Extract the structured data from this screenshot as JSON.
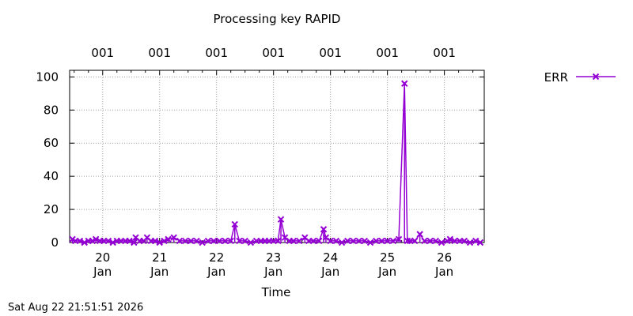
{
  "chart_data": {
    "type": "line",
    "title": "Processing key RAPID",
    "xlabel": "Time",
    "ylabel": "",
    "ylim": [
      0,
      104
    ],
    "xlim": [
      19.42,
      26.7
    ],
    "yticks": [
      0,
      20,
      40,
      60,
      80,
      100
    ],
    "xticks": [
      {
        "value": 20,
        "day": "20",
        "month": "Jan"
      },
      {
        "value": 21,
        "day": "21",
        "month": "Jan"
      },
      {
        "value": 22,
        "day": "22",
        "month": "Jan"
      },
      {
        "value": 23,
        "day": "23",
        "month": "Jan"
      },
      {
        "value": 24,
        "day": "24",
        "month": "Jan"
      },
      {
        "value": 25,
        "day": "25",
        "month": "Jan"
      },
      {
        "value": 26,
        "day": "26",
        "month": "Jan"
      }
    ],
    "x2ticks": [
      {
        "value": 20,
        "label": "001"
      },
      {
        "value": 21,
        "label": "001"
      },
      {
        "value": 22,
        "label": "001"
      },
      {
        "value": 23,
        "label": "001"
      },
      {
        "value": 24,
        "label": "001"
      },
      {
        "value": 25,
        "label": "001"
      },
      {
        "value": 26,
        "label": "001"
      }
    ],
    "grid": true,
    "legend_position": "top-right outside",
    "series": [
      {
        "name": "ERR",
        "color": "#9400d3",
        "marker": "x",
        "style": "impulses-points",
        "points": [
          [
            19.47,
            2
          ],
          [
            19.52,
            1
          ],
          [
            19.6,
            1
          ],
          [
            19.68,
            0
          ],
          [
            19.75,
            1
          ],
          [
            19.82,
            1
          ],
          [
            19.88,
            2
          ],
          [
            19.95,
            1
          ],
          [
            20.02,
            1
          ],
          [
            20.1,
            1
          ],
          [
            20.18,
            0
          ],
          [
            20.25,
            1
          ],
          [
            20.32,
            1
          ],
          [
            20.4,
            1
          ],
          [
            20.47,
            1
          ],
          [
            20.55,
            0
          ],
          [
            20.58,
            3
          ],
          [
            20.65,
            1
          ],
          [
            20.72,
            1
          ],
          [
            20.78,
            3
          ],
          [
            20.85,
            1
          ],
          [
            20.92,
            1
          ],
          [
            21.0,
            0
          ],
          [
            21.08,
            1
          ],
          [
            21.15,
            2
          ],
          [
            21.25,
            3
          ],
          [
            21.35,
            1
          ],
          [
            21.45,
            1
          ],
          [
            21.55,
            1
          ],
          [
            21.65,
            1
          ],
          [
            21.75,
            0
          ],
          [
            21.85,
            1
          ],
          [
            21.95,
            1
          ],
          [
            22.05,
            1
          ],
          [
            22.15,
            1
          ],
          [
            22.25,
            1
          ],
          [
            22.32,
            11
          ],
          [
            22.4,
            1
          ],
          [
            22.5,
            1
          ],
          [
            22.6,
            0
          ],
          [
            22.7,
            1
          ],
          [
            22.78,
            1
          ],
          [
            22.85,
            1
          ],
          [
            22.92,
            1
          ],
          [
            23.0,
            1
          ],
          [
            23.08,
            1
          ],
          [
            23.13,
            14
          ],
          [
            23.2,
            3
          ],
          [
            23.28,
            1
          ],
          [
            23.35,
            1
          ],
          [
            23.45,
            1
          ],
          [
            23.55,
            3
          ],
          [
            23.62,
            1
          ],
          [
            23.7,
            1
          ],
          [
            23.8,
            1
          ],
          [
            23.88,
            8
          ],
          [
            23.92,
            3
          ],
          [
            24.0,
            1
          ],
          [
            24.1,
            1
          ],
          [
            24.2,
            0
          ],
          [
            24.3,
            1
          ],
          [
            24.4,
            1
          ],
          [
            24.5,
            1
          ],
          [
            24.6,
            1
          ],
          [
            24.7,
            0
          ],
          [
            24.8,
            1
          ],
          [
            24.9,
            1
          ],
          [
            25.0,
            1
          ],
          [
            25.1,
            1
          ],
          [
            25.2,
            2
          ],
          [
            25.3,
            96
          ],
          [
            25.35,
            1
          ],
          [
            25.4,
            1
          ],
          [
            25.48,
            1
          ],
          [
            25.57,
            5
          ],
          [
            25.65,
            1
          ],
          [
            25.75,
            1
          ],
          [
            25.85,
            1
          ],
          [
            25.95,
            0
          ],
          [
            26.05,
            1
          ],
          [
            26.1,
            2
          ],
          [
            26.18,
            1
          ],
          [
            26.27,
            1
          ],
          [
            26.35,
            1
          ],
          [
            26.45,
            0
          ],
          [
            26.55,
            1
          ],
          [
            26.63,
            0
          ]
        ]
      }
    ]
  },
  "footer": {
    "timestamp": "Sat Aug 22 21:51:51 2026"
  }
}
